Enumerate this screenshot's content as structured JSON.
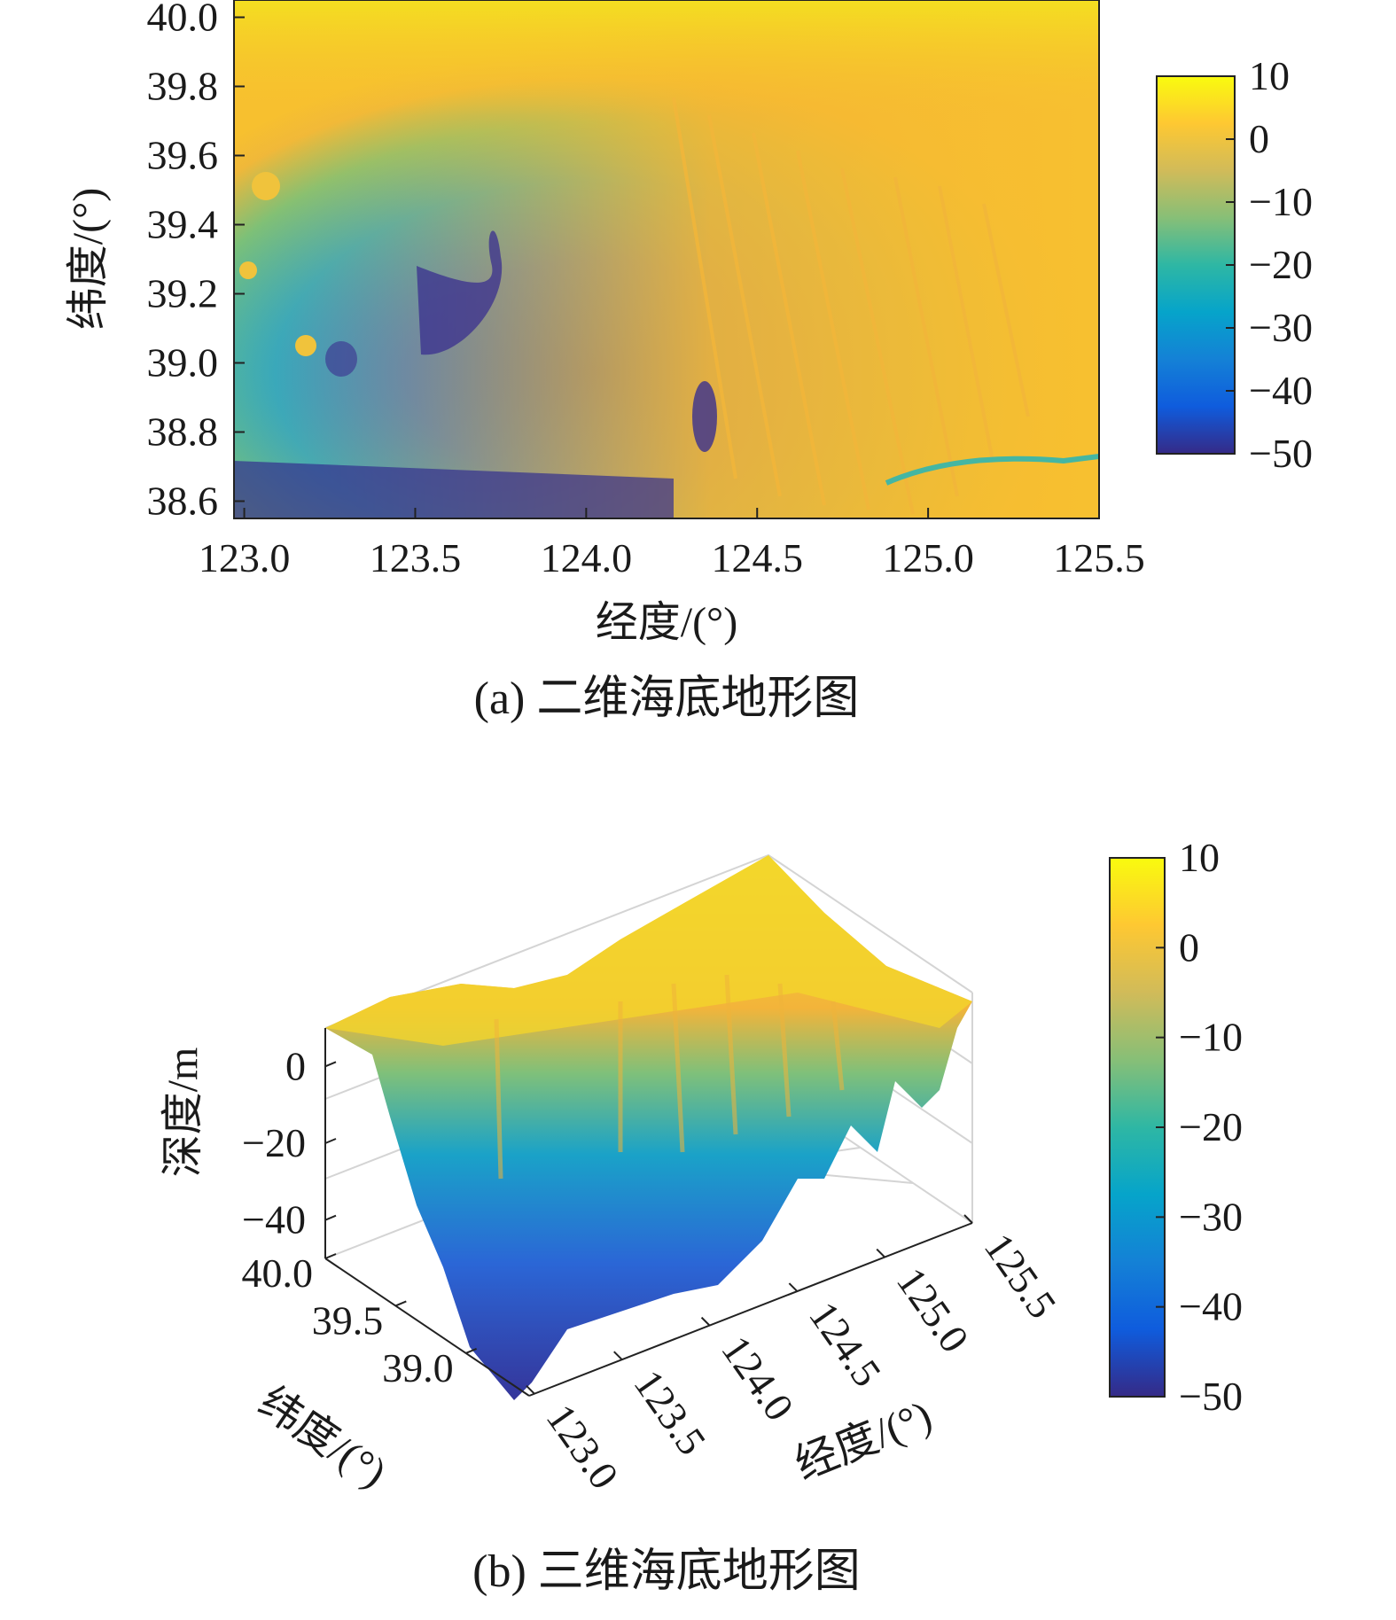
{
  "chart_data": [
    {
      "panel": "a",
      "type": "heatmap",
      "caption": "(a) 二维海底地形图",
      "xlabel": "经度/(°)",
      "ylabel": "纬度/(°)",
      "xlim": [
        122.97,
        125.5
      ],
      "ylim": [
        38.55,
        40.05
      ],
      "xticks": [
        123.0,
        123.5,
        124.0,
        124.5,
        125.0,
        125.5
      ],
      "xtick_labels": [
        "123.0",
        "123.5",
        "124.0",
        "124.5",
        "125.0",
        "125.5"
      ],
      "yticks": [
        38.6,
        38.8,
        39.0,
        39.2,
        39.4,
        39.6,
        39.8,
        40.0
      ],
      "ytick_labels": [
        "38.6",
        "38.8",
        "39.0",
        "39.2",
        "39.4",
        "39.6",
        "39.8",
        "40.0"
      ],
      "colormap": "parula",
      "clim": [
        -50,
        10
      ],
      "colorbar_ticks": [
        10,
        0,
        -10,
        -20,
        -30,
        -40,
        -50
      ],
      "colorbar_tick_labels": [
        "10",
        "0",
        "−10",
        "−20",
        "−30",
        "−40",
        "−50"
      ],
      "colorbar_placement": "right",
      "grid": false
    },
    {
      "panel": "b",
      "type": "surface",
      "caption": "(b) 三维海底地形图",
      "xlabel": "经度/(°)",
      "ylabel": "纬度/(°)",
      "zlabel": "深度/m",
      "xticks": [
        123.0,
        123.5,
        124.0,
        124.5,
        125.0,
        125.5
      ],
      "xtick_labels": [
        "123.0",
        "123.5",
        "124.0",
        "124.5",
        "125.0",
        "125.5"
      ],
      "yticks": [
        39.0,
        39.5,
        40.0
      ],
      "ytick_labels": [
        "39.0",
        "39.5",
        "40.0"
      ],
      "zticks": [
        0,
        -20,
        -40
      ],
      "ztick_labels": [
        "0",
        "−20",
        "−40"
      ],
      "colormap": "parula",
      "clim": [
        -50,
        10
      ],
      "colorbar_ticks": [
        10,
        0,
        -10,
        -20,
        -30,
        -40,
        -50
      ],
      "colorbar_tick_labels": [
        "10",
        "0",
        "−10",
        "−20",
        "−30",
        "−40",
        "−50"
      ],
      "colorbar_placement": "right",
      "grid": true
    }
  ]
}
